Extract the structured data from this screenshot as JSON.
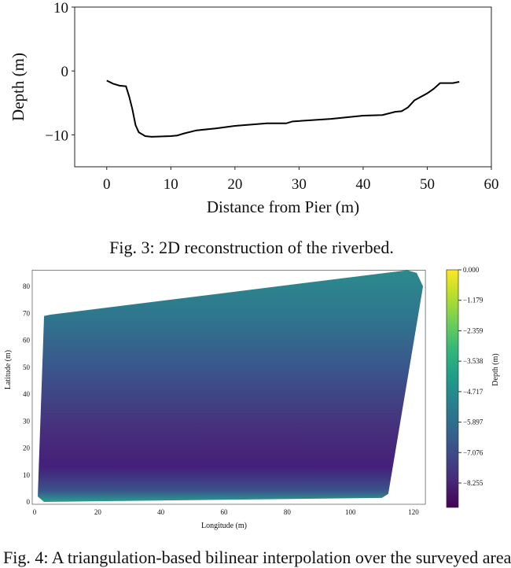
{
  "chart_data": [
    {
      "type": "line",
      "xlabel": "Distance from Pier (m)",
      "ylabel": "Depth (m)",
      "xlim": [
        -5,
        60
      ],
      "ylim": [
        -15,
        10
      ],
      "xticks": [
        0,
        10,
        20,
        30,
        40,
        50,
        60
      ],
      "yticks": [
        -10,
        0,
        10
      ],
      "x": [
        0,
        1,
        2,
        3,
        3.5,
        4,
        4.5,
        5,
        6,
        7,
        10,
        11,
        12,
        14,
        17,
        20,
        25,
        28,
        29,
        35,
        40,
        43,
        45,
        46,
        47,
        48,
        50,
        51,
        52,
        53,
        54,
        55
      ],
      "y": [
        -1.5,
        -2,
        -2.3,
        -2.4,
        -4,
        -6,
        -8.5,
        -9.6,
        -10.2,
        -10.3,
        -10.2,
        -10.1,
        -9.8,
        -9.3,
        -9,
        -8.6,
        -8.2,
        -8.2,
        -7.9,
        -7.5,
        -7,
        -6.9,
        -6.4,
        -6.3,
        -5.7,
        -4.6,
        -3.5,
        -2.8,
        -1.9,
        -1.9,
        -1.9,
        -1.7
      ],
      "color": "#000000"
    },
    {
      "type": "heatmap",
      "xlabel": "Longitude (m)",
      "ylabel": "Latitude (m)",
      "xlim": [
        0,
        123
      ],
      "ylim": [
        0,
        86
      ],
      "xticks": [
        0,
        20,
        40,
        60,
        80,
        100,
        120
      ],
      "yticks": [
        0,
        10,
        20,
        30,
        40,
        50,
        60,
        70,
        80
      ],
      "colorbar": {
        "label": "Depth (m)",
        "ticks": [
          "0.000",
          "-1.179",
          "-2.359",
          "-3.538",
          "-4.717",
          "-5.897",
          "-7.076",
          "-8.255"
        ],
        "range": [
          -9.2,
          0
        ],
        "colormap": "viridis"
      }
    }
  ],
  "captions": {
    "fig3": "Fig. 3: 2D reconstruction of the riverbed.",
    "fig4": "Fig. 4: A triangulation-based bilinear interpolation over the surveyed area"
  }
}
